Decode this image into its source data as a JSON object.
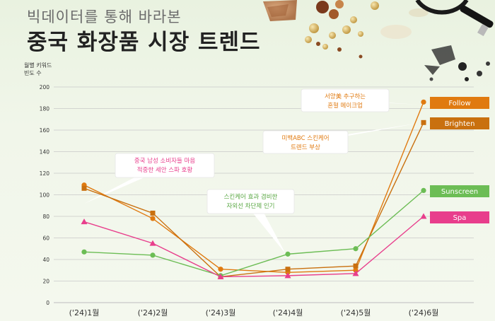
{
  "header": {
    "subtitle": "빅데이터를 통해 바라본",
    "title": "중국 화장품 시장 트렌드"
  },
  "chart_data": {
    "type": "line",
    "ylabel_lines": [
      "월별 키워드",
      "빈도 수"
    ],
    "ylim": [
      0,
      200
    ],
    "yticks": [
      0,
      20,
      40,
      60,
      80,
      100,
      120,
      140,
      160,
      180,
      200
    ],
    "grid": true,
    "categories": [
      "('24)1월",
      "('24)2월",
      "('24)3월",
      "('24)4월",
      "('24)5월",
      "('24)6월"
    ],
    "series": [
      {
        "name": "Follow",
        "color": "#e07a10",
        "marker": "circle",
        "values": [
          109,
          78,
          31,
          28,
          30,
          186
        ]
      },
      {
        "name": "Brighten",
        "color": "#c9700f",
        "marker": "square",
        "values": [
          106,
          83,
          24,
          31,
          34,
          167
        ]
      },
      {
        "name": "Sunscreen",
        "color": "#6cbd55",
        "marker": "circle",
        "values": [
          47,
          44,
          25,
          45,
          50,
          104
        ]
      },
      {
        "name": "Spa",
        "color": "#e83e8c",
        "marker": "triangle",
        "values": [
          75,
          55,
          24,
          25,
          27,
          80
        ]
      }
    ],
    "annotations": [
      {
        "lines": [
          "중국 남성 소비자들 마음",
          "적중한 세안 스파 호황"
        ],
        "color": "#e83e8c"
      },
      {
        "lines": [
          "스킨케어 효과 겸비한",
          "자외선 차단제 인기"
        ],
        "color": "#5aa844"
      },
      {
        "lines": [
          "서양美 추구하는",
          "혼혈 메이크업"
        ],
        "color": "#e07a10"
      },
      {
        "lines": [
          "미백ABC 스킨케어",
          "트렌드 부상"
        ],
        "color": "#e07a10"
      }
    ]
  }
}
